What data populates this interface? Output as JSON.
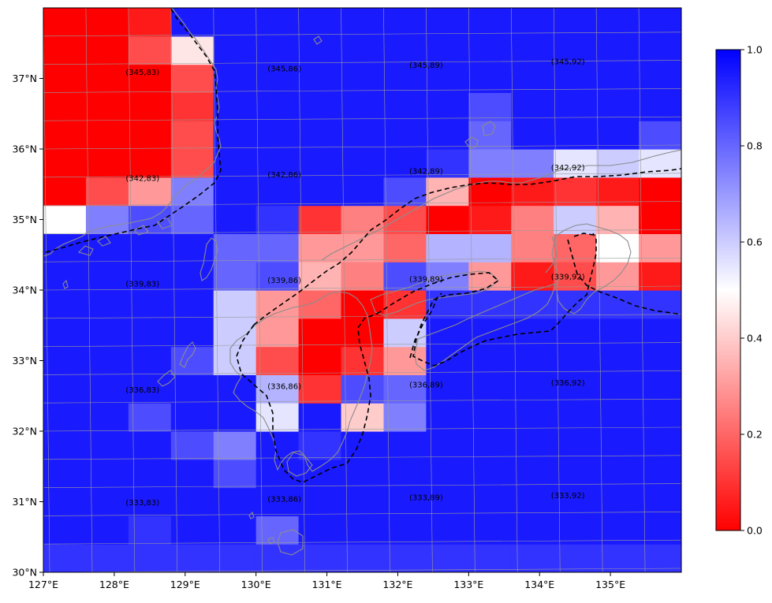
{
  "map": {
    "lon_range": [
      127,
      136
    ],
    "lat_range": [
      30,
      38
    ],
    "x_tick_labels": [
      "127°E",
      "128°E",
      "129°E",
      "130°E",
      "131°E",
      "132°E",
      "133°E",
      "134°E",
      "135°E"
    ],
    "y_tick_labels": [
      "30°N",
      "31°N",
      "32°N",
      "33°N",
      "34°N",
      "35°N",
      "36°N",
      "37°N"
    ],
    "colormap": {
      "low": "#ff0000",
      "mid": "#ffffff",
      "high": "#0000ff"
    },
    "colorbar": {
      "min": 0.0,
      "max": 1.0,
      "tick_labels": [
        "0.0",
        "0.2",
        "0.4",
        "0.6",
        "0.8",
        "1.0"
      ]
    },
    "grid_lines": true,
    "region_labels": [
      {
        "text": "(345,83)",
        "lon": 128.4,
        "lat": 37.05
      },
      {
        "text": "(345,86)",
        "lon": 130.4,
        "lat": 37.1
      },
      {
        "text": "(345,89)",
        "lon": 132.4,
        "lat": 37.15
      },
      {
        "text": "(345,92)",
        "lon": 134.4,
        "lat": 37.2
      },
      {
        "text": "(342,83)",
        "lon": 128.4,
        "lat": 35.55
      },
      {
        "text": "(342,86)",
        "lon": 130.4,
        "lat": 35.6
      },
      {
        "text": "(342,89)",
        "lon": 132.4,
        "lat": 35.65
      },
      {
        "text": "(342,92)",
        "lon": 134.4,
        "lat": 35.7
      },
      {
        "text": "(339,83)",
        "lon": 128.4,
        "lat": 34.05
      },
      {
        "text": "(339,86)",
        "lon": 130.4,
        "lat": 34.1
      },
      {
        "text": "(339,89)",
        "lon": 132.4,
        "lat": 34.12
      },
      {
        "text": "(339,92)",
        "lon": 134.4,
        "lat": 34.15
      },
      {
        "text": "(336,83)",
        "lon": 128.4,
        "lat": 32.55
      },
      {
        "text": "(336,86)",
        "lon": 130.4,
        "lat": 32.6
      },
      {
        "text": "(336,89)",
        "lon": 132.4,
        "lat": 32.62
      },
      {
        "text": "(336,92)",
        "lon": 134.4,
        "lat": 32.65
      },
      {
        "text": "(333,83)",
        "lon": 128.4,
        "lat": 30.95
      },
      {
        "text": "(333,86)",
        "lon": 130.4,
        "lat": 31.0
      },
      {
        "text": "(333,89)",
        "lon": 132.4,
        "lat": 31.02
      },
      {
        "text": "(333,92)",
        "lon": 134.4,
        "lat": 31.05
      }
    ],
    "grid_values": [
      [
        0.9,
        0.9,
        0.9,
        0.9,
        0.9,
        0.9,
        0.9,
        0.9,
        0.9,
        0.9,
        0.9,
        0.9,
        0.9,
        0.9,
        0.9
      ],
      [
        0.95,
        0.95,
        0.9,
        0.95,
        0.95,
        0.8,
        0.95,
        0.95,
        0.95,
        0.95,
        0.95,
        0.95,
        0.95,
        0.95,
        0.95
      ],
      [
        0.95,
        0.95,
        0.95,
        0.95,
        0.95,
        0.95,
        0.95,
        0.95,
        0.95,
        0.95,
        0.95,
        0.95,
        0.95,
        0.95,
        0.95
      ],
      [
        0.95,
        0.95,
        0.95,
        0.95,
        0.85,
        0.95,
        0.95,
        0.95,
        0.95,
        0.95,
        0.95,
        0.95,
        0.95,
        0.95,
        0.95
      ],
      [
        0.95,
        0.95,
        0.95,
        0.85,
        0.75,
        0.95,
        0.9,
        0.95,
        0.95,
        0.95,
        0.95,
        0.95,
        0.95,
        0.95,
        0.95
      ],
      [
        0.95,
        0.95,
        0.85,
        0.95,
        0.95,
        0.55,
        0.95,
        0.4,
        0.75,
        0.95,
        0.95,
        0.95,
        0.95,
        0.95,
        0.95
      ],
      [
        0.95,
        0.95,
        0.95,
        0.95,
        0.95,
        0.65,
        0.1,
        0.85,
        0.8,
        0.95,
        0.95,
        0.95,
        0.95,
        0.95,
        0.95
      ],
      [
        0.95,
        0.95,
        0.95,
        0.85,
        0.6,
        0.15,
        0.0,
        0.1,
        0.3,
        0.95,
        0.95,
        0.95,
        0.95,
        0.95,
        0.95
      ],
      [
        0.95,
        0.95,
        0.95,
        0.95,
        0.6,
        0.3,
        0.0,
        0.0,
        0.6,
        0.95,
        0.95,
        0.95,
        0.95,
        0.95,
        0.95
      ],
      [
        0.95,
        0.95,
        0.95,
        0.95,
        0.6,
        0.3,
        0.2,
        0.0,
        0.1,
        0.9,
        0.9,
        0.9,
        0.9,
        0.9,
        0.9
      ],
      [
        0.95,
        0.95,
        0.95,
        0.95,
        0.8,
        0.85,
        0.35,
        0.25,
        0.85,
        0.75,
        0.3,
        0.05,
        0.15,
        0.3,
        0.05
      ],
      [
        0.95,
        0.95,
        0.95,
        0.95,
        0.8,
        0.8,
        0.3,
        0.3,
        0.2,
        0.65,
        0.65,
        0.25,
        0.2,
        0.5,
        0.3
      ],
      [
        0.5,
        0.75,
        0.85,
        0.8,
        0.95,
        0.9,
        0.1,
        0.25,
        0.15,
        0.0,
        0.05,
        0.25,
        0.6,
        0.35,
        0.0
      ],
      [
        0.0,
        0.15,
        0.3,
        0.75,
        0.95,
        0.95,
        0.95,
        0.95,
        0.85,
        0.35,
        0.0,
        0.05,
        0.1,
        0.05,
        0.0
      ],
      [
        0.0,
        0.0,
        0.0,
        0.15,
        0.95,
        0.95,
        0.95,
        0.95,
        0.95,
        0.9,
        0.75,
        0.75,
        0.55,
        0.6,
        0.55
      ],
      [
        0.0,
        0.0,
        0.0,
        0.15,
        0.95,
        0.95,
        0.95,
        0.95,
        0.95,
        0.95,
        0.8,
        0.95,
        0.95,
        0.95,
        0.85
      ],
      [
        0.0,
        0.0,
        0.0,
        0.1,
        0.95,
        0.95,
        0.95,
        0.95,
        0.95,
        0.95,
        0.85,
        0.95,
        0.95,
        0.95,
        0.95
      ],
      [
        0.0,
        0.0,
        0.0,
        0.15,
        0.95,
        0.95,
        0.95,
        0.95,
        0.95,
        0.95,
        0.95,
        0.95,
        0.95,
        0.95,
        0.95
      ],
      [
        0.0,
        0.0,
        0.15,
        0.45,
        0.95,
        0.95,
        0.95,
        0.95,
        0.95,
        0.95,
        0.95,
        0.95,
        0.95,
        0.95,
        0.95
      ],
      [
        0.0,
        0.0,
        0.05,
        0.95,
        0.95,
        0.95,
        0.95,
        0.95,
        0.95,
        0.95,
        0.95,
        0.95,
        0.95,
        0.95,
        0.95
      ]
    ]
  }
}
